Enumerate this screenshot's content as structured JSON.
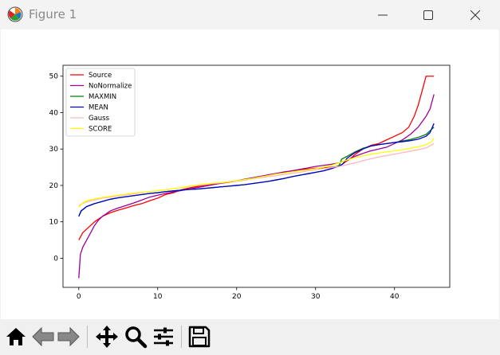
{
  "window": {
    "title": "Figure 1",
    "icon": "matplotlib-icon"
  },
  "window_controls": [
    "minimize-icon",
    "maximize-icon",
    "close-icon"
  ],
  "toolbar": {
    "buttons": [
      {
        "name": "home-icon"
      },
      {
        "name": "back-icon"
      },
      {
        "name": "forward-icon"
      },
      {
        "name": "pan-icon"
      },
      {
        "name": "zoom-icon"
      },
      {
        "name": "subplots-icon"
      },
      {
        "name": "save-icon"
      }
    ]
  },
  "chart_data": {
    "type": "line",
    "xlim": [
      -2,
      47
    ],
    "ylim": [
      -8,
      53
    ],
    "xticks": [
      0,
      10,
      20,
      30,
      40
    ],
    "yticks": [
      0,
      10,
      20,
      30,
      40,
      50
    ],
    "grid": false,
    "legend_position": "top-left",
    "series": [
      {
        "name": "Source",
        "color": "#ff0000",
        "points": [
          [
            0,
            5
          ],
          [
            0.5,
            7
          ],
          [
            1,
            8
          ],
          [
            2,
            10
          ],
          [
            3,
            11.5
          ],
          [
            4,
            12.5
          ],
          [
            5,
            13.2
          ],
          [
            6,
            13.8
          ],
          [
            7,
            14.5
          ],
          [
            8,
            15
          ],
          [
            9,
            15.8
          ],
          [
            10,
            16.5
          ],
          [
            11,
            17.5
          ],
          [
            12,
            18
          ],
          [
            13,
            18.8
          ],
          [
            14,
            19.3
          ],
          [
            15,
            19.7
          ],
          [
            16,
            20
          ],
          [
            17,
            20.3
          ],
          [
            18,
            20.6
          ],
          [
            19,
            20.9
          ],
          [
            20,
            21.2
          ],
          [
            21,
            21.5
          ],
          [
            22,
            21.9
          ],
          [
            23,
            22.3
          ],
          [
            24,
            22.8
          ],
          [
            25,
            23.2
          ],
          [
            26,
            23.6
          ],
          [
            27,
            24
          ],
          [
            28,
            24.3
          ],
          [
            29,
            24.5
          ],
          [
            30,
            24.7
          ],
          [
            31,
            24.8
          ],
          [
            32,
            25
          ],
          [
            33,
            25.2
          ],
          [
            33.8,
            26.5
          ],
          [
            34.5,
            27.5
          ],
          [
            35,
            28.5
          ],
          [
            36,
            30
          ],
          [
            37,
            31
          ],
          [
            38,
            31.5
          ],
          [
            39,
            32.5
          ],
          [
            40,
            33.5
          ],
          [
            41,
            34.5
          ],
          [
            41.8,
            36
          ],
          [
            42.5,
            39
          ],
          [
            43,
            42
          ],
          [
            43.5,
            46
          ],
          [
            44,
            50
          ],
          [
            45,
            50
          ]
        ]
      },
      {
        "name": "NoNormalize",
        "color": "#9b009b",
        "points": [
          [
            0,
            -5.5
          ],
          [
            0.2,
            1
          ],
          [
            0.5,
            3
          ],
          [
            1,
            5
          ],
          [
            1.5,
            7
          ],
          [
            2,
            9
          ],
          [
            2.5,
            10.5
          ],
          [
            3,
            11.5
          ],
          [
            4,
            13
          ],
          [
            5,
            13.8
          ],
          [
            6,
            14.5
          ],
          [
            7,
            15.2
          ],
          [
            8,
            16
          ],
          [
            9,
            16.8
          ],
          [
            10,
            17.3
          ],
          [
            11,
            17.8
          ],
          [
            12,
            18.2
          ],
          [
            13,
            18.6
          ],
          [
            14,
            19
          ],
          [
            15,
            19.4
          ],
          [
            16,
            19.8
          ],
          [
            17,
            20.2
          ],
          [
            18,
            20.6
          ],
          [
            19,
            21
          ],
          [
            20,
            21.3
          ],
          [
            21,
            21.7
          ],
          [
            22,
            22.1
          ],
          [
            23,
            22.5
          ],
          [
            24,
            22.9
          ],
          [
            25,
            23.3
          ],
          [
            26,
            23.7
          ],
          [
            27,
            24
          ],
          [
            28,
            24.4
          ],
          [
            29,
            24.8
          ],
          [
            30,
            25.2
          ],
          [
            31,
            25.5
          ],
          [
            32,
            25.8
          ],
          [
            33,
            26.2
          ],
          [
            34,
            27
          ],
          [
            35,
            28
          ],
          [
            36,
            28.8
          ],
          [
            37,
            29.5
          ],
          [
            38,
            30
          ],
          [
            39,
            30.5
          ],
          [
            40,
            31.5
          ],
          [
            41,
            32.5
          ],
          [
            42,
            34
          ],
          [
            43,
            36
          ],
          [
            44,
            39
          ],
          [
            44.5,
            41
          ],
          [
            45,
            45
          ]
        ]
      },
      {
        "name": "MAXMIN",
        "color": "#008000",
        "points": [
          [
            0,
            11.5
          ],
          [
            0.3,
            13
          ],
          [
            1,
            14.2
          ],
          [
            2,
            15
          ],
          [
            3,
            15.6
          ],
          [
            4,
            16.2
          ],
          [
            5,
            16.6
          ],
          [
            6,
            16.9
          ],
          [
            7,
            17.2
          ],
          [
            8,
            17.5
          ],
          [
            9,
            17.8
          ],
          [
            10,
            18
          ],
          [
            11,
            18.3
          ],
          [
            12,
            18.5
          ],
          [
            13,
            18.7
          ],
          [
            14,
            18.9
          ],
          [
            15,
            19
          ],
          [
            16,
            19.2
          ],
          [
            17,
            19.4
          ],
          [
            18,
            19.6
          ],
          [
            19,
            19.8
          ],
          [
            20,
            20
          ],
          [
            21,
            20.2
          ],
          [
            22,
            20.5
          ],
          [
            23,
            20.8
          ],
          [
            24,
            21.1
          ],
          [
            25,
            21.5
          ],
          [
            26,
            21.9
          ],
          [
            27,
            22.4
          ],
          [
            28,
            22.8
          ],
          [
            29,
            23.2
          ],
          [
            30,
            23.6
          ],
          [
            31,
            24
          ],
          [
            32,
            24.6
          ],
          [
            33,
            25.5
          ],
          [
            33.3,
            27.2
          ],
          [
            34,
            28
          ],
          [
            35,
            29.2
          ],
          [
            36,
            30.2
          ],
          [
            37,
            30.8
          ],
          [
            38,
            31.2
          ],
          [
            39,
            31.5
          ],
          [
            40,
            31.8
          ],
          [
            41,
            32.2
          ],
          [
            42,
            32.6
          ],
          [
            43,
            33.2
          ],
          [
            44,
            34
          ],
          [
            44.5,
            35
          ],
          [
            45,
            36
          ]
        ]
      },
      {
        "name": "MEAN",
        "color": "#0000cd",
        "points": [
          [
            0,
            11.5
          ],
          [
            0.3,
            13
          ],
          [
            1,
            14.2
          ],
          [
            2,
            15
          ],
          [
            3,
            15.6
          ],
          [
            4,
            16.2
          ],
          [
            5,
            16.6
          ],
          [
            6,
            16.9
          ],
          [
            7,
            17.2
          ],
          [
            8,
            17.5
          ],
          [
            9,
            17.8
          ],
          [
            10,
            18
          ],
          [
            11,
            18.3
          ],
          [
            12,
            18.5
          ],
          [
            13,
            18.7
          ],
          [
            14,
            18.9
          ],
          [
            15,
            19
          ],
          [
            16,
            19.2
          ],
          [
            17,
            19.4
          ],
          [
            18,
            19.6
          ],
          [
            19,
            19.8
          ],
          [
            20,
            20
          ],
          [
            21,
            20.2
          ],
          [
            22,
            20.5
          ],
          [
            23,
            20.8
          ],
          [
            24,
            21.1
          ],
          [
            25,
            21.5
          ],
          [
            26,
            21.9
          ],
          [
            27,
            22.4
          ],
          [
            28,
            22.8
          ],
          [
            29,
            23.2
          ],
          [
            30,
            23.6
          ],
          [
            31,
            24
          ],
          [
            32,
            24.6
          ],
          [
            33,
            25.3
          ],
          [
            33.5,
            26
          ],
          [
            34,
            27.5
          ],
          [
            35,
            29
          ],
          [
            36,
            30
          ],
          [
            37,
            30.8
          ],
          [
            38,
            31.2
          ],
          [
            39,
            31.5
          ],
          [
            40,
            31.8
          ],
          [
            41,
            32
          ],
          [
            42,
            32.3
          ],
          [
            43,
            32.7
          ],
          [
            44,
            33.5
          ],
          [
            44.5,
            34.5
          ],
          [
            45,
            37
          ]
        ]
      },
      {
        "name": "Gauss",
        "color": "#ffb6c1",
        "points": [
          [
            0,
            14.5
          ],
          [
            1,
            15.5
          ],
          [
            2,
            16
          ],
          [
            3,
            16.5
          ],
          [
            4,
            16.8
          ],
          [
            5,
            17.1
          ],
          [
            6,
            17.4
          ],
          [
            7,
            17.7
          ],
          [
            8,
            18
          ],
          [
            9,
            18.3
          ],
          [
            10,
            18.6
          ],
          [
            11,
            18.8
          ],
          [
            12,
            19.1
          ],
          [
            13,
            19.4
          ],
          [
            14,
            19.7
          ],
          [
            15,
            20
          ],
          [
            16,
            20.2
          ],
          [
            17,
            20.5
          ],
          [
            18,
            20.7
          ],
          [
            19,
            21
          ],
          [
            20,
            21.2
          ],
          [
            21,
            21.5
          ],
          [
            22,
            21.8
          ],
          [
            23,
            22.1
          ],
          [
            24,
            22.4
          ],
          [
            25,
            22.7
          ],
          [
            26,
            23
          ],
          [
            27,
            23.3
          ],
          [
            28,
            23.6
          ],
          [
            29,
            24
          ],
          [
            30,
            24.3
          ],
          [
            31,
            24.6
          ],
          [
            32,
            24.9
          ],
          [
            33,
            25.2
          ],
          [
            34,
            25.7
          ],
          [
            35,
            26.2
          ],
          [
            36,
            26.8
          ],
          [
            37,
            27.3
          ],
          [
            38,
            27.8
          ],
          [
            39,
            28.2
          ],
          [
            40,
            28.6
          ],
          [
            41,
            29
          ],
          [
            42,
            29.4
          ],
          [
            43,
            29.8
          ],
          [
            44,
            30.3
          ],
          [
            45,
            31.5
          ]
        ]
      },
      {
        "name": "SCORE",
        "color": "#ffff00",
        "points": [
          [
            0,
            14
          ],
          [
            0.5,
            15.2
          ],
          [
            1,
            15.8
          ],
          [
            2,
            16.3
          ],
          [
            3,
            16.7
          ],
          [
            4,
            17
          ],
          [
            5,
            17.3
          ],
          [
            6,
            17.6
          ],
          [
            7,
            17.9
          ],
          [
            8,
            18.1
          ],
          [
            9,
            18.3
          ],
          [
            10,
            18.6
          ],
          [
            11,
            18.8
          ],
          [
            12,
            19.1
          ],
          [
            13,
            19.4
          ],
          [
            14,
            19.8
          ],
          [
            15,
            20.1
          ],
          [
            16,
            20.4
          ],
          [
            17,
            20.6
          ],
          [
            18,
            20.8
          ],
          [
            19,
            21
          ],
          [
            20,
            21.3
          ],
          [
            21,
            21.6
          ],
          [
            22,
            21.9
          ],
          [
            23,
            22.3
          ],
          [
            24,
            22.7
          ],
          [
            25,
            23.1
          ],
          [
            26,
            23.4
          ],
          [
            27,
            23.7
          ],
          [
            28,
            24
          ],
          [
            29,
            24.3
          ],
          [
            30,
            24.6
          ],
          [
            31,
            25
          ],
          [
            32,
            25.5
          ],
          [
            33,
            26.2
          ],
          [
            34,
            27
          ],
          [
            35,
            27.6
          ],
          [
            36,
            28.1
          ],
          [
            37,
            28.6
          ],
          [
            38,
            28.9
          ],
          [
            39,
            29.2
          ],
          [
            40,
            29.5
          ],
          [
            41,
            29.8
          ],
          [
            42,
            30.2
          ],
          [
            43,
            30.6
          ],
          [
            44,
            31.2
          ],
          [
            44.7,
            32
          ],
          [
            45,
            33
          ]
        ]
      }
    ]
  }
}
